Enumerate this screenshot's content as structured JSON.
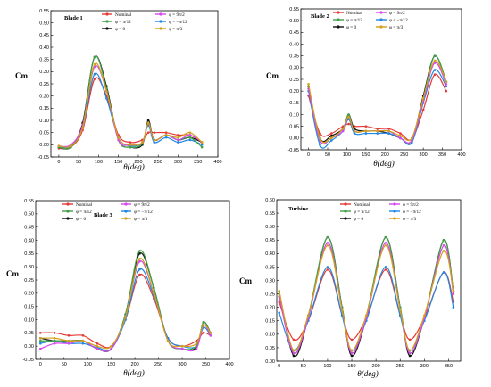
{
  "chart_data": [
    {
      "type": "line",
      "title": "Blade 1",
      "xlabel": "θ(deg)",
      "ylabel": "Cm",
      "xlim": [
        -20,
        400
      ],
      "ylim": [
        -0.05,
        0.55
      ],
      "xticks": [
        0,
        50,
        100,
        150,
        200,
        250,
        300,
        350,
        400
      ],
      "yticks": [
        -0.05,
        0,
        0.05,
        0.1,
        0.15,
        0.2,
        0.25,
        0.3,
        0.35,
        0.4,
        0.45,
        0.5,
        0.55
      ],
      "tick_labels_x": [
        "0",
        "50",
        "100",
        "150",
        "200",
        "250",
        "300",
        "350",
        "400"
      ],
      "tick_labels_y": [
        "-0.05",
        "0.00",
        "0.05",
        "0.10",
        "0.15",
        "0.20",
        "0.25",
        "0.30",
        "0.35",
        "0.40",
        "0.45",
        "0.50",
        "0.55"
      ],
      "legend_position": "top-right",
      "series": [
        {
          "name": "Nominal",
          "color": "#e53935",
          "x": [
            0,
            30,
            60,
            90,
            120,
            150,
            180,
            210,
            225,
            240,
            270,
            300,
            330,
            360
          ],
          "y": [
            -0.015,
            -0.01,
            0.06,
            0.27,
            0.2,
            0.04,
            0.01,
            0.02,
            0.05,
            0.05,
            0.05,
            0.04,
            0.04,
            0.01
          ]
        },
        {
          "name": "φ = 0",
          "color": "#111111",
          "x": [
            0,
            30,
            60,
            90,
            120,
            150,
            180,
            210,
            225,
            240,
            270,
            300,
            330,
            360
          ],
          "y": [
            -0.01,
            -0.01,
            0.09,
            0.36,
            0.24,
            0.02,
            -0.01,
            0.0,
            0.1,
            0.02,
            0.04,
            0.02,
            0.03,
            0.01
          ]
        },
        {
          "name": "φ = −π/12",
          "color": "#1e88e5",
          "x": [
            0,
            30,
            60,
            90,
            120,
            150,
            180,
            210,
            225,
            240,
            270,
            300,
            330,
            360
          ],
          "y": [
            -0.01,
            -0.005,
            0.07,
            0.29,
            0.19,
            0.03,
            -0.005,
            0.01,
            0.08,
            0.01,
            0.03,
            0.01,
            0.02,
            0.0
          ]
        },
        {
          "name": "φ = π/12",
          "color": "#43a047",
          "x": [
            0,
            30,
            60,
            90,
            120,
            150,
            180,
            210,
            225,
            240,
            270,
            300,
            330,
            360
          ],
          "y": [
            -0.01,
            -0.01,
            0.08,
            0.36,
            0.23,
            0.02,
            -0.01,
            0.005,
            0.09,
            0.02,
            0.04,
            0.02,
            0.03,
            -0.01
          ]
        },
        {
          "name": "φ = 9π/2",
          "color": "#d946ef",
          "x": [
            0,
            30,
            60,
            90,
            120,
            150,
            180,
            210,
            225,
            240,
            270,
            300,
            330,
            360
          ],
          "y": [
            -0.005,
            0.0,
            0.08,
            0.32,
            0.22,
            0.02,
            0.0,
            0.01,
            0.09,
            0.02,
            0.04,
            0.02,
            0.04,
            0.01
          ]
        },
        {
          "name": "φ = π/3",
          "color": "#d4a017",
          "x": [
            0,
            30,
            60,
            90,
            120,
            150,
            180,
            210,
            225,
            240,
            270,
            300,
            330,
            360
          ],
          "y": [
            -0.005,
            -0.005,
            0.07,
            0.33,
            0.22,
            0.03,
            0.0,
            0.01,
            0.09,
            0.02,
            0.04,
            0.03,
            0.05,
            0.01
          ]
        }
      ]
    },
    {
      "type": "line",
      "title": "Blade 2",
      "xlabel": "θ(deg)",
      "ylabel": "Cm",
      "xlim": [
        -20,
        400
      ],
      "ylim": [
        -0.05,
        0.55
      ],
      "xticks": [
        0,
        50,
        100,
        150,
        200,
        250,
        300,
        350,
        400
      ],
      "yticks": [
        -0.05,
        0,
        0.05,
        0.1,
        0.15,
        0.2,
        0.25,
        0.3,
        0.35,
        0.4,
        0.45,
        0.5,
        0.55
      ],
      "tick_labels_x": [
        "0",
        "50",
        "100",
        "150",
        "200",
        "250",
        "300",
        "350",
        "400"
      ],
      "tick_labels_y": [
        "-0.05",
        "0.00",
        "0.05",
        "0.10",
        "0.15",
        "0.20",
        "0.25",
        "0.30",
        "0.35",
        "0.40",
        "0.45",
        "0.50",
        "0.55"
      ],
      "legend_position": "top-right",
      "series": [
        {
          "name": "Nominal",
          "color": "#e53935",
          "x": [
            0,
            30,
            60,
            90,
            105,
            120,
            150,
            180,
            210,
            240,
            270,
            300,
            330,
            360
          ],
          "y": [
            0.18,
            0.02,
            0.02,
            0.05,
            0.06,
            0.05,
            0.05,
            0.04,
            0.04,
            0.02,
            -0.005,
            0.12,
            0.27,
            0.2
          ]
        },
        {
          "name": "φ = 0",
          "color": "#111111",
          "x": [
            0,
            30,
            60,
            90,
            105,
            120,
            150,
            180,
            210,
            240,
            270,
            300,
            330,
            360
          ],
          "y": [
            0.22,
            0.0,
            0.01,
            0.04,
            0.1,
            0.04,
            0.03,
            0.03,
            0.02,
            0.0,
            -0.01,
            0.18,
            0.35,
            0.24
          ]
        },
        {
          "name": "φ = −π/12",
          "color": "#1e88e5",
          "x": [
            0,
            30,
            60,
            90,
            105,
            120,
            150,
            180,
            210,
            240,
            270,
            300,
            330,
            360
          ],
          "y": [
            0.2,
            -0.03,
            -0.01,
            0.03,
            0.08,
            0.02,
            0.02,
            0.02,
            0.02,
            0.0,
            -0.02,
            0.15,
            0.29,
            0.22
          ]
        },
        {
          "name": "φ = π/12",
          "color": "#43a047",
          "x": [
            0,
            30,
            60,
            90,
            105,
            120,
            150,
            180,
            210,
            240,
            270,
            300,
            330,
            360
          ],
          "y": [
            0.22,
            -0.01,
            0.0,
            0.04,
            0.1,
            0.03,
            0.03,
            0.03,
            0.03,
            0.0,
            -0.01,
            0.17,
            0.35,
            0.24
          ]
        },
        {
          "name": "φ = 9π/2",
          "color": "#d946ef",
          "x": [
            0,
            30,
            60,
            90,
            105,
            120,
            150,
            180,
            210,
            240,
            270,
            300,
            330,
            360
          ],
          "y": [
            0.21,
            -0.01,
            0.0,
            0.03,
            0.09,
            0.03,
            0.03,
            0.03,
            0.03,
            0.0,
            -0.01,
            0.16,
            0.32,
            0.23
          ]
        },
        {
          "name": "φ = π/3",
          "color": "#d4a017",
          "x": [
            0,
            30,
            60,
            90,
            105,
            120,
            150,
            180,
            210,
            240,
            270,
            300,
            330,
            360
          ],
          "y": [
            0.23,
            0.0,
            0.0,
            0.04,
            0.09,
            0.03,
            0.03,
            0.03,
            0.03,
            0.01,
            0.0,
            0.17,
            0.33,
            0.24
          ]
        }
      ]
    },
    {
      "type": "line",
      "title": "Blade 3",
      "xlabel": "θ(deg)",
      "ylabel": "Cm",
      "xlim": [
        -10,
        400
      ],
      "ylim": [
        -0.05,
        0.55
      ],
      "xticks": [
        0,
        50,
        100,
        150,
        200,
        250,
        300,
        350,
        400
      ],
      "yticks": [
        -0.05,
        0,
        0.05,
        0.1,
        0.15,
        0.2,
        0.25,
        0.3,
        0.35,
        0.4,
        0.45,
        0.5,
        0.55
      ],
      "tick_labels_x": [
        "0",
        "50",
        "100",
        "150",
        "200",
        "250",
        "300",
        "350",
        "400"
      ],
      "tick_labels_y": [
        "-0.05",
        "0.00",
        "0.05",
        "0.10",
        "0.15",
        "0.20",
        "0.25",
        "0.30",
        "0.35",
        "0.40",
        "0.45",
        "0.50",
        "0.55"
      ],
      "legend_position": "top",
      "series": [
        {
          "name": "Nominal",
          "color": "#e53935",
          "x": [
            0,
            30,
            60,
            90,
            120,
            150,
            180,
            210,
            240,
            270,
            300,
            330,
            345,
            360
          ],
          "y": [
            0.05,
            0.05,
            0.04,
            0.04,
            0.01,
            0.0,
            0.1,
            0.27,
            0.18,
            0.03,
            0.0,
            0.02,
            0.05,
            0.04
          ]
        },
        {
          "name": "φ = 0",
          "color": "#111111",
          "x": [
            0,
            30,
            60,
            90,
            120,
            150,
            180,
            210,
            240,
            270,
            300,
            330,
            345,
            360
          ],
          "y": [
            0.03,
            0.02,
            0.02,
            0.02,
            -0.01,
            -0.01,
            0.12,
            0.35,
            0.22,
            0.02,
            -0.01,
            -0.005,
            0.09,
            0.05
          ]
        },
        {
          "name": "φ = −π/12",
          "color": "#1e88e5",
          "x": [
            0,
            30,
            60,
            90,
            120,
            150,
            180,
            210,
            240,
            270,
            300,
            330,
            345,
            360
          ],
          "y": [
            0.01,
            0.02,
            0.01,
            0.01,
            -0.005,
            -0.01,
            0.1,
            0.29,
            0.19,
            0.03,
            0.0,
            0.0,
            0.07,
            0.04
          ]
        },
        {
          "name": "φ = π/12",
          "color": "#43a047",
          "x": [
            0,
            30,
            60,
            90,
            120,
            150,
            180,
            210,
            240,
            270,
            300,
            330,
            345,
            360
          ],
          "y": [
            0.02,
            0.02,
            0.02,
            0.02,
            -0.01,
            -0.01,
            0.12,
            0.36,
            0.22,
            0.02,
            -0.01,
            0.0,
            0.09,
            0.05
          ]
        },
        {
          "name": "φ = 9π/2",
          "color": "#d946ef",
          "x": [
            0,
            30,
            60,
            90,
            120,
            150,
            180,
            210,
            240,
            270,
            300,
            330,
            345,
            360
          ],
          "y": [
            -0.01,
            0.01,
            0.01,
            0.02,
            -0.01,
            -0.01,
            0.11,
            0.32,
            0.2,
            0.02,
            -0.01,
            -0.01,
            0.08,
            0.04
          ]
        },
        {
          "name": "φ = π/3",
          "color": "#d4a017",
          "x": [
            0,
            30,
            60,
            90,
            120,
            150,
            180,
            210,
            240,
            270,
            300,
            330,
            345,
            360
          ],
          "y": [
            0.03,
            0.03,
            0.02,
            0.02,
            0.0,
            0.0,
            0.11,
            0.33,
            0.2,
            0.02,
            0.0,
            0.01,
            0.08,
            0.05
          ]
        }
      ]
    },
    {
      "type": "line",
      "title": "Turbine",
      "xlabel": "θ(deg)",
      "ylabel": "Cm",
      "xlim": [
        -5,
        375
      ],
      "ylim": [
        0,
        0.6
      ],
      "xticks": [
        0,
        50,
        100,
        150,
        200,
        250,
        300,
        350
      ],
      "yticks": [
        0,
        0.05,
        0.1,
        0.15,
        0.2,
        0.25,
        0.3,
        0.35,
        0.4,
        0.45,
        0.5,
        0.55,
        0.6
      ],
      "tick_labels_x": [
        "0",
        "50",
        "100",
        "150",
        "200",
        "250",
        "300",
        "350"
      ],
      "tick_labels_y": [
        "0.00",
        "0.05",
        "0.10",
        "0.15",
        "0.20",
        "0.25",
        "0.30",
        "0.35",
        "0.40",
        "0.45",
        "0.50",
        "0.55",
        "0.60"
      ],
      "legend_position": "top",
      "series": [
        {
          "name": "Nominal",
          "color": "#e53935",
          "x": [
            0,
            30,
            60,
            100,
            130,
            150,
            180,
            220,
            250,
            270,
            300,
            340,
            360
          ],
          "y": [
            0.22,
            0.08,
            0.15,
            0.34,
            0.17,
            0.08,
            0.16,
            0.34,
            0.17,
            0.08,
            0.16,
            0.33,
            0.22
          ]
        },
        {
          "name": "φ = 0",
          "color": "#111111",
          "x": [
            0,
            30,
            60,
            100,
            130,
            150,
            180,
            220,
            250,
            270,
            300,
            340,
            360
          ],
          "y": [
            0.26,
            0.02,
            0.16,
            0.46,
            0.2,
            0.02,
            0.16,
            0.46,
            0.2,
            0.02,
            0.16,
            0.45,
            0.26
          ]
        },
        {
          "name": "φ = −π/12",
          "color": "#1e88e5",
          "x": [
            0,
            30,
            60,
            100,
            130,
            150,
            180,
            220,
            250,
            270,
            300,
            340,
            360
          ],
          "y": [
            0.18,
            0.04,
            0.15,
            0.35,
            0.17,
            0.04,
            0.15,
            0.35,
            0.17,
            0.04,
            0.15,
            0.33,
            0.2
          ]
        },
        {
          "name": "φ = π/12",
          "color": "#43a047",
          "x": [
            0,
            30,
            60,
            100,
            130,
            150,
            180,
            220,
            250,
            270,
            300,
            340,
            360
          ],
          "y": [
            0.25,
            0.03,
            0.17,
            0.46,
            0.2,
            0.03,
            0.17,
            0.46,
            0.2,
            0.03,
            0.16,
            0.45,
            0.26
          ]
        },
        {
          "name": "φ = 9π/2",
          "color": "#d946ef",
          "x": [
            0,
            30,
            60,
            100,
            130,
            150,
            180,
            220,
            250,
            270,
            300,
            340,
            360
          ],
          "y": [
            0.24,
            0.03,
            0.16,
            0.44,
            0.19,
            0.03,
            0.16,
            0.44,
            0.19,
            0.03,
            0.16,
            0.43,
            0.25
          ]
        },
        {
          "name": "φ = π/3",
          "color": "#d4a017",
          "x": [
            0,
            30,
            60,
            100,
            130,
            150,
            180,
            220,
            250,
            270,
            300,
            340,
            360
          ],
          "y": [
            0.26,
            0.04,
            0.17,
            0.43,
            0.19,
            0.04,
            0.17,
            0.43,
            0.19,
            0.04,
            0.17,
            0.41,
            0.26
          ]
        }
      ]
    }
  ]
}
